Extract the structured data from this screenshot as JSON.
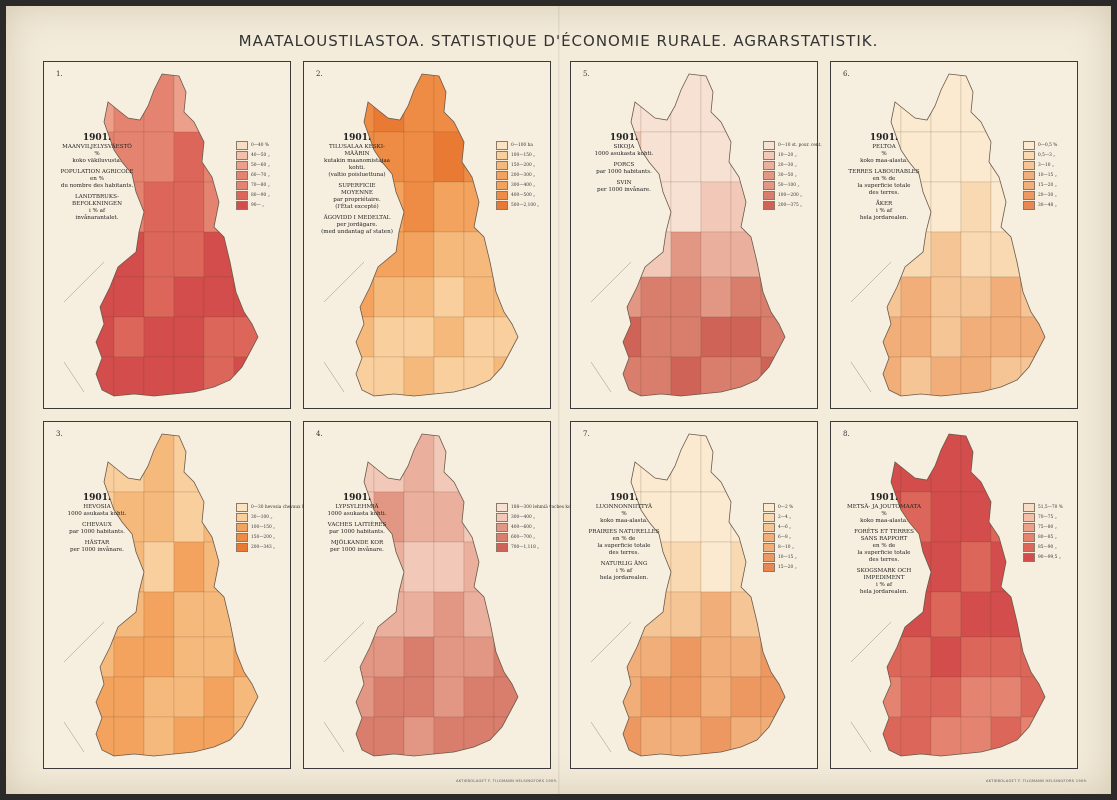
{
  "page": {
    "title": "MAATALOUSTILASTOA.   STATISTIQUE D'ÉCONOMIE RURALE.   AGRARSTATISTIK.",
    "imprint_left": "AKTIEBOLAGET F. TILGMANN HELSINGFORS 1909.",
    "imprint_right": "AKTIEBOLAGET F. TILGMANN HELSINGFORS 1909."
  },
  "colors": {
    "paper": "#f4ecdb",
    "red_ramp": [
      "#f7dcc6",
      "#f2c0a8",
      "#eca08c",
      "#e4836f",
      "#dc6659",
      "#d24d4b"
    ],
    "orange_ramp": [
      "#fbe3c2",
      "#f9cf9e",
      "#f6b97c",
      "#f3a35e",
      "#ee8b44",
      "#e97a34"
    ],
    "pink_ramp": [
      "#f7e1d3",
      "#f2c9b8",
      "#ebb09d",
      "#e29784",
      "#d97d6c",
      "#cf6358"
    ],
    "buff_ramp": [
      "#fbead0",
      "#f8d9b2",
      "#f5c595",
      "#f1ae78",
      "#ec9860",
      "#e88752"
    ]
  },
  "panels": [
    {
      "num": "1.",
      "title_lines": [
        "1901.",
        "MAANVILJELYSVÄESTÖ",
        "%",
        "koko väkiluvusta.",
        "",
        "POPULATION AGRICOLE",
        "en %",
        "du nombre des habitants.",
        "",
        "LANDTBRUKS-",
        "BEFOLKNINGEN",
        "i % af",
        "invånarantalet."
      ],
      "legend": [
        "0—40 %",
        "40—50 „",
        "50—60 „",
        "60—70 „",
        "70—80 „",
        "80—90 „",
        "90— „"
      ],
      "ramp": "red_ramp"
    },
    {
      "num": "2.",
      "title_lines": [
        "1901.",
        "TILUSALAA KESKI-",
        "MÄÄRIN",
        "kutakin maanomistajaa",
        "kohti.",
        "(valtio poisluettuna)",
        "",
        "SUPERFICIE",
        "MOYENNE",
        "par propriétaire.",
        "(l'État excepté)",
        "",
        "ÄGOVIDD I MEDELTAL",
        "per jordägare.",
        "(med undantag af staten)"
      ],
      "legend": [
        "0—100 ha",
        "100—150 „",
        "150—200 „",
        "200—300 „",
        "300—400 „",
        "400—500 „",
        "500—2,100 „"
      ],
      "ramp": "orange_ramp"
    },
    {
      "num": "5.",
      "title_lines": [
        "1901.",
        "SIKOJA",
        "1000 asukasta kohti.",
        "",
        "PORCS",
        "par 1000 habitants.",
        "",
        "SVIN",
        "per 1000 invånare."
      ],
      "legend": [
        "0—10 st. pour. cent.",
        "10—20 „",
        "20—30 „",
        "30—50 „",
        "50—100 „",
        "100—200 „",
        "200—375 „"
      ],
      "ramp": "pink_ramp"
    },
    {
      "num": "6.",
      "title_lines": [
        "1901.",
        "PELTOA",
        "%",
        "koko maa-alasta.",
        "",
        "TERRES LABOURABLES",
        "en % de",
        "la superficie totale",
        "des terres.",
        "",
        "ÅKER",
        "i % af",
        "hela jordarealen."
      ],
      "legend": [
        "0—0,5 %",
        "0,5—3 „",
        "3—10 „",
        "10—15 „",
        "15—20 „",
        "20—30 „",
        "30—48 „"
      ],
      "ramp": "buff_ramp"
    },
    {
      "num": "3.",
      "title_lines": [
        "1901.",
        "HEVOSIA",
        "1000 asukasta kohti.",
        "",
        "CHEVAUX",
        "par 1000 habitants.",
        "",
        "HÄSTAR",
        "per 1000 invånare."
      ],
      "legend": [
        "0—30 hevosia chevaux hästar",
        "30—100 „",
        "100—150 „",
        "150—200 „",
        "200—343 „"
      ],
      "ramp": "orange_ramp"
    },
    {
      "num": "4.",
      "title_lines": [
        "1901.",
        "LYPSYLEHMIÄ",
        "1000 asukasta kohti.",
        "",
        "VACHES LAITIÈRES",
        "par 1000 habitants.",
        "",
        "MJÖLKANDE KOR",
        "per 1000 invånare."
      ],
      "legend": [
        "188—300 lehmiä vaches kor",
        "300—400 „",
        "400—600 „",
        "600—700 „",
        "700—1,118 „"
      ],
      "ramp": "pink_ramp"
    },
    {
      "num": "7.",
      "title_lines": [
        "1901.",
        "LUONNONNIITTYÄ",
        "%",
        "koko maa-alasta.",
        "",
        "PRAIRIES NATURELLES",
        "en % de",
        "la superficie totale",
        "des terres.",
        "",
        "NATURLIG ÄNG",
        "i % af",
        "hela jordarealen."
      ],
      "legend": [
        "0—2 %",
        "2—4 „",
        "4—6 „",
        "6—8 „",
        "8—10 „",
        "10—15 „",
        "15—20 „"
      ],
      "ramp": "buff_ramp"
    },
    {
      "num": "8.",
      "title_lines": [
        "1901.",
        "METSÄ- JA JOUTOMAATA",
        "%",
        "koko maa-alasta.",
        "",
        "FORÊTS ET TERRES",
        "SANS RAPPORT",
        "en % de",
        "la superficie totale",
        "des terres.",
        "",
        "SKOGSMARK OCH",
        "IMPEDIMENT",
        "i % af",
        "hela jordarealen."
      ],
      "legend": [
        "51,5—70 %",
        "70—75 „",
        "75—80 „",
        "80—85 „",
        "85—90 „",
        "90—99,5 „"
      ],
      "ramp": "red_ramp"
    }
  ]
}
